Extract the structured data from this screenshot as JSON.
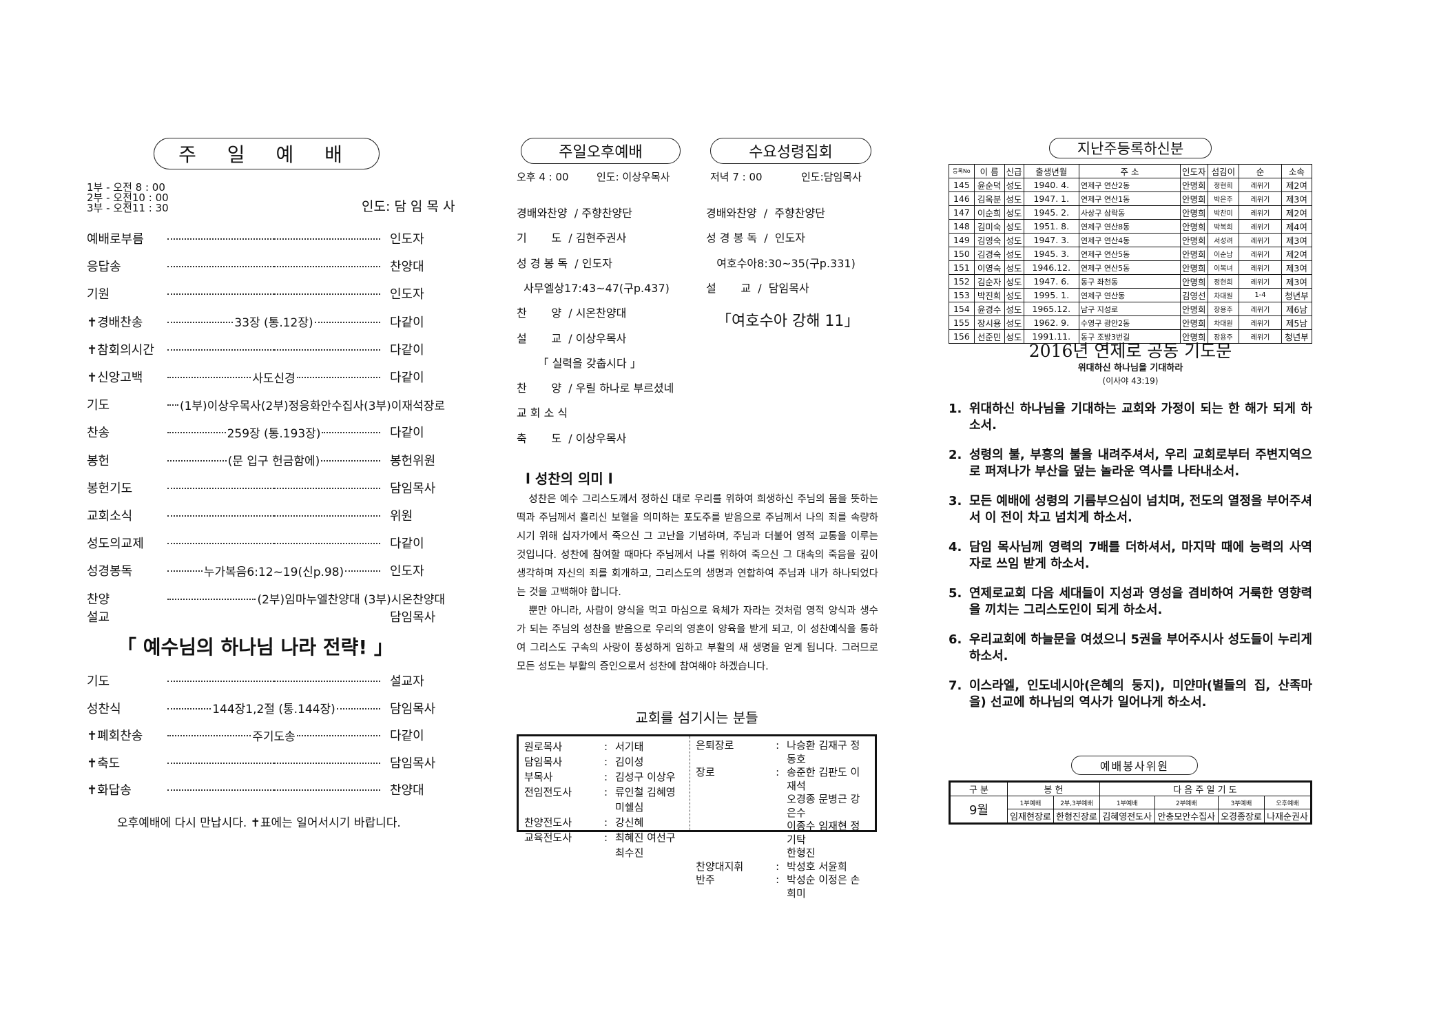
{
  "sunday": {
    "title": "주 일 예 배",
    "times": [
      "1부 - 오전 8 : 00",
      "2부 - 오전10 : 00",
      "3부 - 오전11 : 30"
    ],
    "leader": "인도: 담 임 목 사",
    "rows": [
      {
        "label": "예배로부름",
        "mid": "",
        "role": "인도자"
      },
      {
        "label": "응답송",
        "mid": "",
        "role": "찬양대"
      },
      {
        "label": "기원",
        "mid": "",
        "role": "인도자"
      },
      {
        "label": "✝경배찬송",
        "mid": "33장 (통.12장)",
        "role": "다같이"
      },
      {
        "label": "✝참회의시간",
        "mid": "",
        "role": "다같이"
      },
      {
        "label": "✝신앙고백",
        "mid": "사도신경",
        "role": "다같이"
      },
      {
        "label": "기도",
        "mid": "(1부)이상우목사(2부)정응화안수집사(3부)이재석장로",
        "role": ""
      },
      {
        "label": "찬송",
        "mid": "259장 (통.193장)",
        "role": "다같이"
      },
      {
        "label": "봉헌",
        "mid": "(문 입구 헌금함에)",
        "role": "봉헌위원"
      },
      {
        "label": "봉헌기도",
        "mid": "",
        "role": "담임목사"
      },
      {
        "label": "교회소식",
        "mid": "",
        "role": "위원"
      },
      {
        "label": "성도의교제",
        "mid": "",
        "role": "다같이"
      },
      {
        "label": "성경봉독",
        "mid": "누가복음6:12~19(신p.98)",
        "role": "인도자"
      },
      {
        "label": "찬양",
        "mid": "(2부)임마누엘찬양대 (3부)시온찬양대",
        "role": ""
      },
      {
        "label": "설교",
        "mid": "",
        "role": "담임목사",
        "nodots": true
      }
    ],
    "sermon_title": "「 예수님의 하나님 나라 전략! 」",
    "rows2": [
      {
        "label": "기도",
        "mid": "",
        "role": "설교자"
      },
      {
        "label": "성찬식",
        "mid": "144장1,2절 (통.144장)",
        "role": "담임목사"
      },
      {
        "label": "✝폐회찬송",
        "mid": "주기도송",
        "role": "다같이"
      },
      {
        "label": "✝축도",
        "mid": "",
        "role": "담임목사"
      },
      {
        "label": "✝화답송",
        "mid": "",
        "role": "찬양대"
      }
    ],
    "closing": "오후예배에 다시 만납시다. ✝표에는 일어서시기 바랍니다."
  },
  "afternoon": {
    "title": "주일오후예배",
    "time": "오후 4 : 00",
    "leader": "인도:  이상우목사",
    "rows": [
      "경배와찬양  / 주향찬양단",
      "기       도  / 김현주권사",
      "성 경 봉 독  / 인도자",
      "  사무엘상17:43~47(구p.437)",
      "찬       양  / 시온찬양대",
      "설       교  / 이상우목사",
      "      「 실력을 갖춥시다 」",
      "찬       양  / 우릴 하나로 부르셨네",
      "교 회 소 식",
      "축       도  / 이상우목사"
    ]
  },
  "wednesday": {
    "title": "수요성령집회",
    "time": "저녁 7 : 00",
    "leader": "인도:담임목사",
    "rows": [
      "경배와찬양  /  주향찬양단",
      "성 경 봉 독  /  인도자",
      "   여호수아8:30~35(구p.331)",
      "설       교  /  담임목사"
    ],
    "sermon": "「여호수아 강해 11」"
  },
  "essay": {
    "title": "l 성찬의 의미 l",
    "paragraphs": [
      "성찬은 예수 그리스도께서 정하신 대로 우리를 위하여 희생하신 주님의 몸을 뜻하는 떡과 주님께서 흘리신 보혈을 의미하는 포도주를 받음으로 주님께서 나의 죄를 속량하시기 위해 십자가에서 죽으신 그 고난을 기념하며, 주님과 더불어 영적 교통을 이루는 것입니다. 성찬에 참여할 때마다 주님께서 나를 위하여 죽으신 그 대속의 죽음을 깊이 생각하며 자신의 죄를 회개하고, 그리스도의 생명과 연합하여 주님과 내가 하나되었다는 것을 고백해야 합니다.",
      "뿐만 아니라, 사람이 양식을 먹고 마심으로 육체가 자라는 것처럼 영적 양식과 생수가 되는 주님의 성찬을 받음으로 우리의 영혼이 양육을 받게 되고, 이 성찬예식을 통하여 그리스도 구속의 사랑이 풍성하게 임하고 부활의 새 생명을 얻게 됩니다. 그러므로 모든 성도는 부활의 증인으로서 성찬에 참여해야 하겠습니다."
    ]
  },
  "staff": {
    "title": "교회를 섬기시는 분들",
    "left": [
      {
        "k": "원로목사",
        "v": "서기태"
      },
      {
        "k": "담임목사",
        "v": "김이성"
      },
      {
        "k": "부목사",
        "v": "김성구 이상우"
      },
      {
        "k": "전임전도사",
        "v": "류인철 김혜영 미쉘심"
      },
      {
        "k": "찬양전도사",
        "v": "강신혜"
      },
      {
        "k": "교육전도사",
        "v": "최혜진 여선구 최수진"
      }
    ],
    "right": [
      {
        "k": "은퇴장로",
        "v": "나승환 김재구 정동호"
      },
      {
        "k": "장로",
        "v": "송준한 김판도 이재석"
      },
      {
        "k": "",
        "v": "오경종 문병근 강은수"
      },
      {
        "k": "",
        "v": "이종수 임재현 정기탁"
      },
      {
        "k": "",
        "v": "한형진"
      },
      {
        "k": "찬양대지휘",
        "v": "박성호 서윤희"
      },
      {
        "k": "반주",
        "v": "박성순 이정은 손희미"
      }
    ]
  },
  "registration": {
    "title": "지난주등록하신분",
    "headers": [
      "등록No",
      "이 름",
      "신급",
      "출생년월",
      "주      소",
      "인도자",
      "섬김이",
      "순",
      "소속"
    ],
    "rows": [
      [
        "145",
        "윤순덕",
        "성도",
        "1940. 4.",
        "연제구 연산2동",
        "안명희",
        "정현희",
        "레위기",
        "제2여"
      ],
      [
        "146",
        "김옥분",
        "성도",
        "1947. 1.",
        "연제구 연산1동",
        "안명희",
        "박은주",
        "레위기",
        "제3여"
      ],
      [
        "147",
        "이순희",
        "성도",
        "1945. 2.",
        "사상구 삼락동",
        "안명희",
        "박찬미",
        "레위기",
        "제2여"
      ],
      [
        "148",
        "김미숙",
        "성도",
        "1951. 8.",
        "연제구 연산8동",
        "안명희",
        "박복희",
        "레위기",
        "제4여"
      ],
      [
        "149",
        "김영숙",
        "성도",
        "1947. 3.",
        "연제구 연산4동",
        "안명희",
        "서성려",
        "레위기",
        "제3여"
      ],
      [
        "150",
        "김경숙",
        "성도",
        "1945. 3.",
        "연제구 연산5동",
        "안명희",
        "이순남",
        "레위기",
        "제2여"
      ],
      [
        "151",
        "이영숙",
        "성도",
        "1946.12.",
        "연제구 연산5동",
        "안명희",
        "이복녀",
        "레위기",
        "제3여"
      ],
      [
        "152",
        "김순자",
        "성도",
        "1947. 6.",
        "동구 좌천동",
        "안명희",
        "정현희",
        "레위기",
        "제3여"
      ],
      [
        "153",
        "박진희",
        "성도",
        "1995. 1.",
        "연제구 연산동",
        "김영선",
        "차대원",
        "1-4",
        "청년부"
      ],
      [
        "154",
        "윤경수",
        "성도",
        "1965.12.",
        "남구 지성로",
        "안명희",
        "장용주",
        "레위기",
        "제6남"
      ],
      [
        "155",
        "장시용",
        "성도",
        "1962. 9.",
        "수영구 광안2동",
        "안명희",
        "차대원",
        "레위기",
        "제5남"
      ],
      [
        "156",
        "선준민",
        "성도",
        "1991.11.",
        "동구 조방3번길",
        "안명희",
        "장용주",
        "레위기",
        "청년부"
      ]
    ]
  },
  "prayer": {
    "title": "2016년 연제로 공동 기도문",
    "subtitle": "위대하신 하나님을 기대하라",
    "verse": "(이사야 43:19)",
    "items": [
      {
        "n": "1.",
        "t": "위대하신 하나님을 기대하는 교회와 가정이 되는 한 해가 되게 하소서."
      },
      {
        "n": "2.",
        "t": "성령의 불, 부흥의 불을 내려주셔서, 우리 교회로부터 주변지역으로 퍼져나가 부산을 덮는 놀라운 역사를 나타내소서."
      },
      {
        "n": "3.",
        "t": "모든 예배에 성령의 기름부으심이 넘치며, 전도의 열정을 부어주셔서 이 전이 차고 넘치게 하소서."
      },
      {
        "n": "4.",
        "t": "담임 목사님께 영력의 7배를 더하셔서, 마지막 때에 능력의 사역자로 쓰임 받게  하소서."
      },
      {
        "n": "5.",
        "t": "연제로교회 다음 세대들이 지성과 영성을 겸비하여 거룩한 영향력을 끼치는 그리스도인이 되게 하소서."
      },
      {
        "n": "6.",
        "t": "우리교회에 하늘문을 여셨으니 5권을 부어주시사 성도들이 누리게 하소서."
      },
      {
        "n": "7.",
        "t": "이스라엘, 인도네시아(은혜의 둥지), 미얀마(별들의 집, 산족마을) 선교에 하나님의 역사가 일어나게 하소서."
      }
    ]
  },
  "service": {
    "title": "예배봉사위원",
    "h_gubun": "구  분",
    "h_offering": "봉      헌",
    "h_prayer": "다 음 주 일 기 도",
    "month": "9월",
    "sub": [
      "1부예배",
      "2부,3부예배",
      "1부예배",
      "2부예배",
      "3부예배",
      "오후예배"
    ],
    "names": [
      "임재현장로",
      "한형진장로",
      "김혜영전도사",
      "안충모안수집사",
      "오경종장로",
      "나재순권사"
    ]
  }
}
